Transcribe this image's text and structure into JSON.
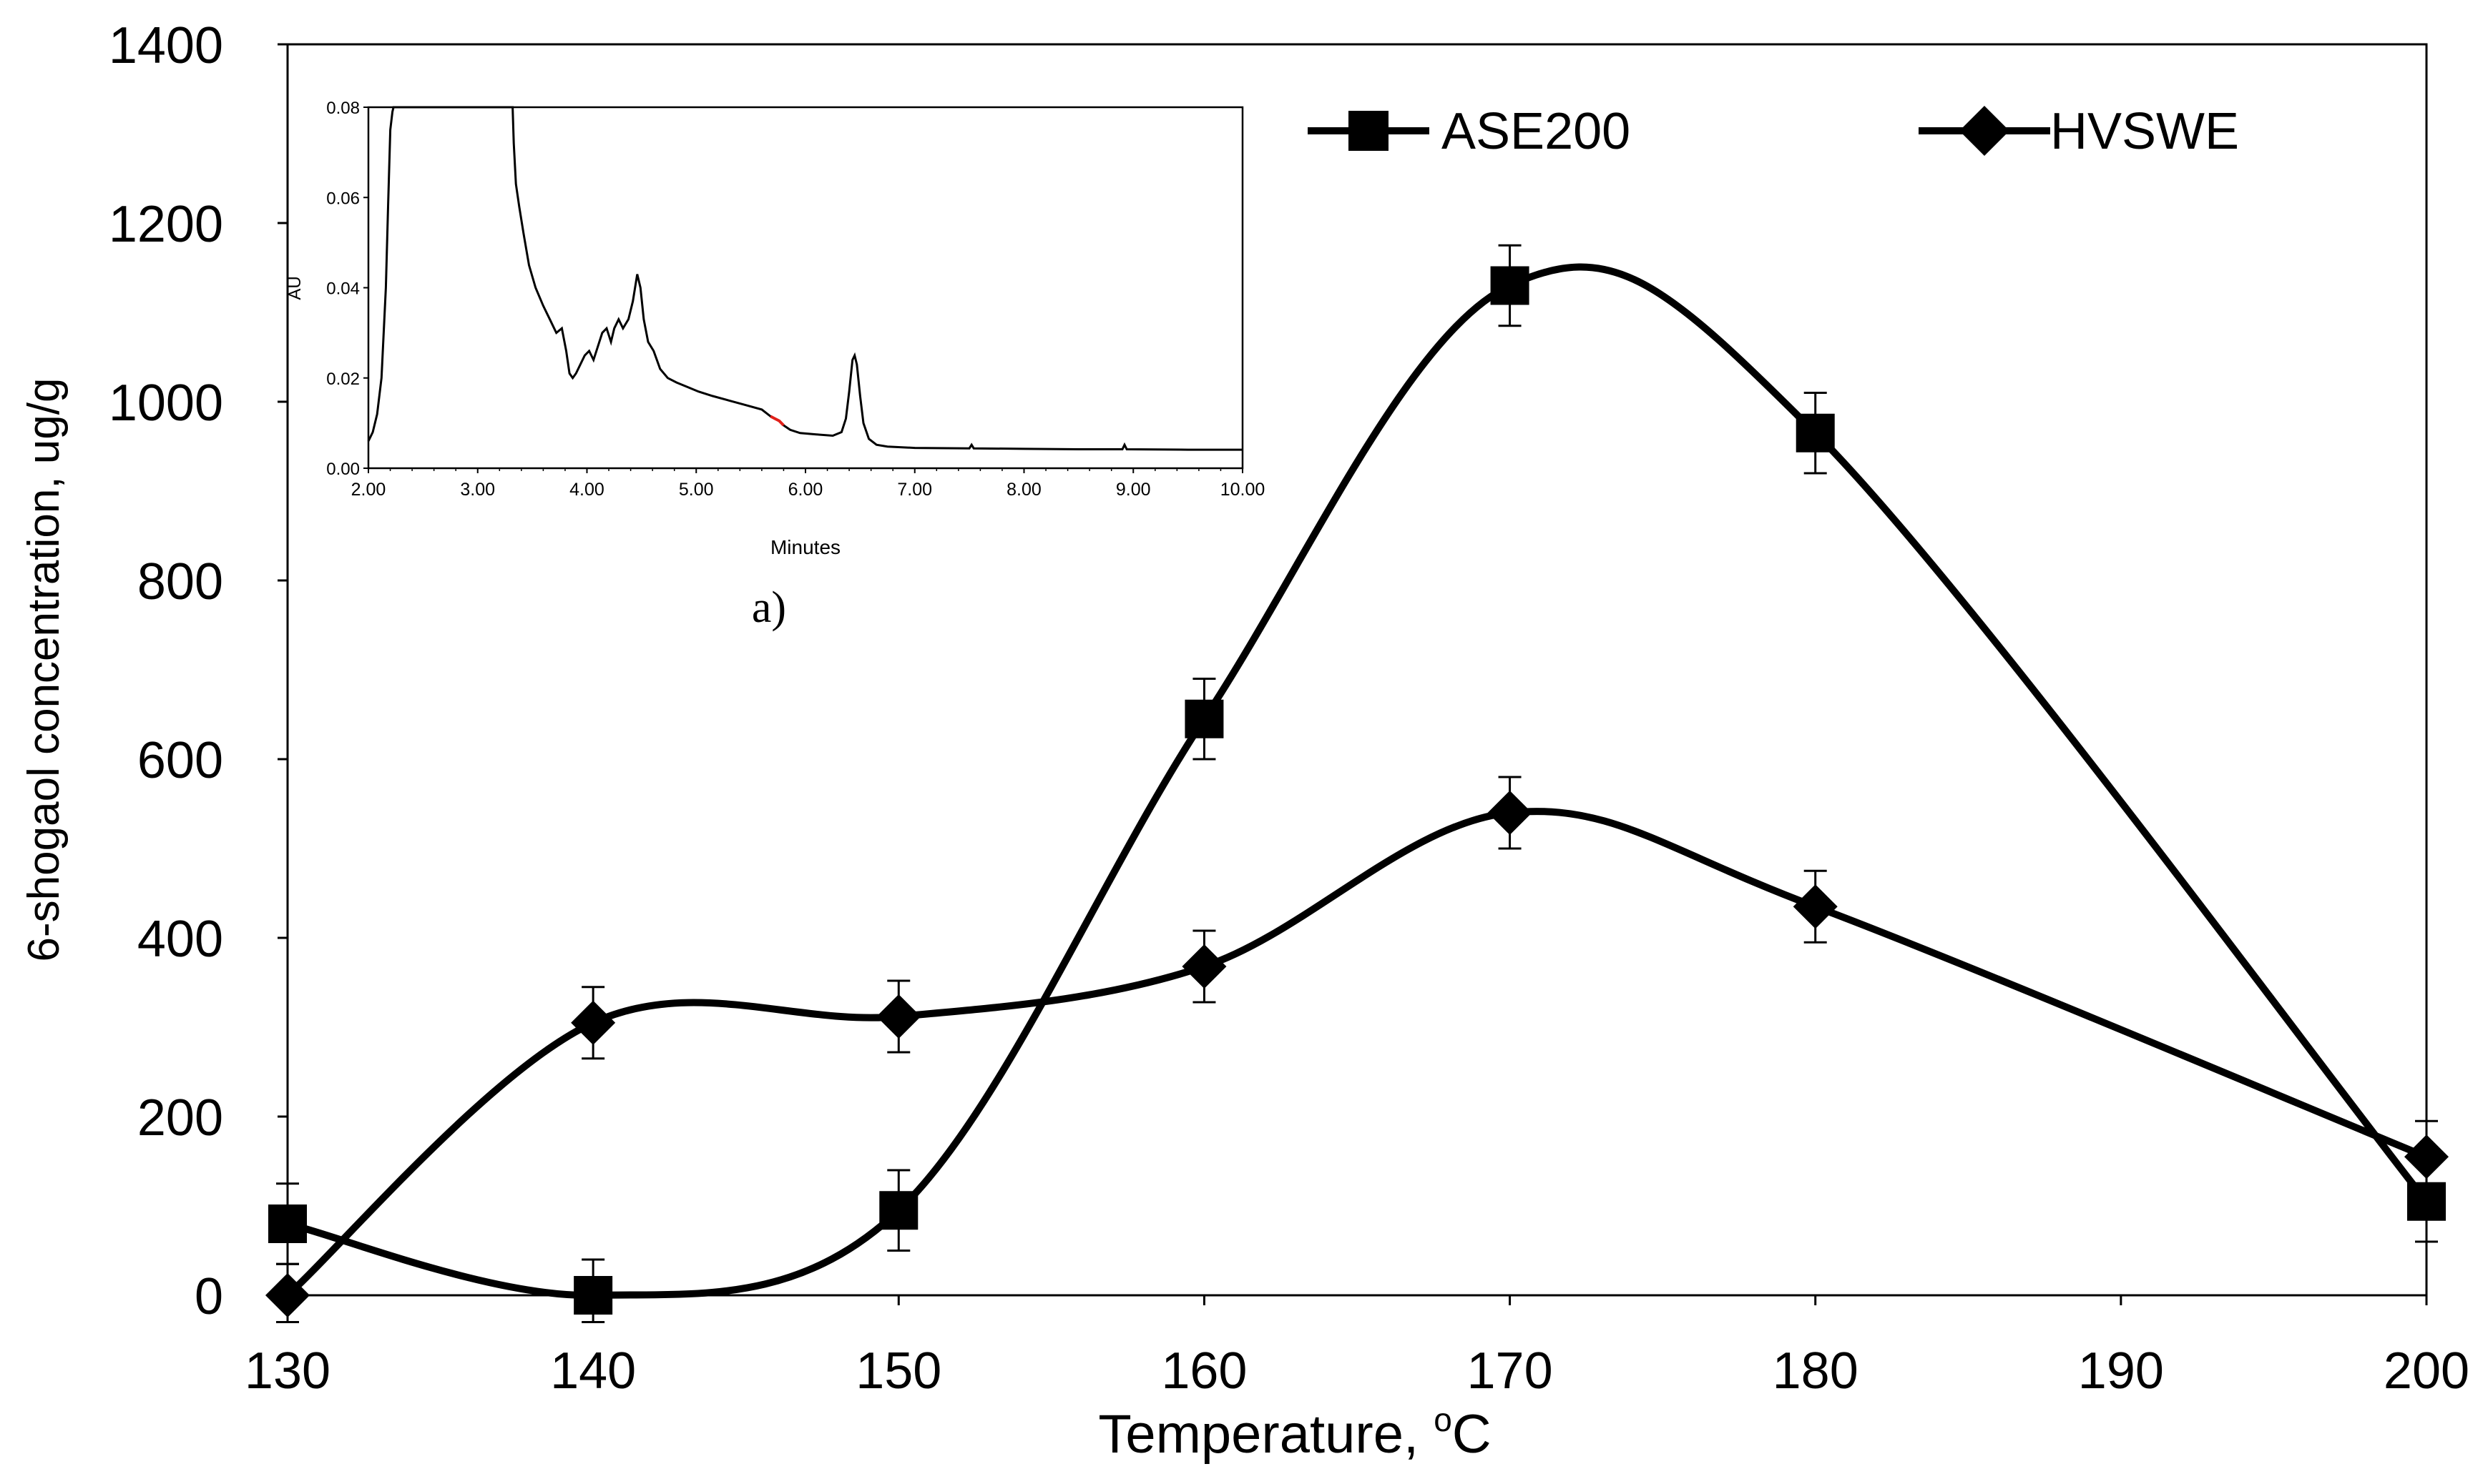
{
  "chart_data": [
    {
      "type": "line",
      "title": "",
      "xlabel": "Temperature, °C",
      "xlabel_main": "Temperature, ",
      "xlabel_sup": "o",
      "xlabel_unit": "C",
      "ylabel": "6-shogaol concentration, ug/g",
      "xlim": [
        130,
        200
      ],
      "ylim": [
        0,
        1400
      ],
      "xticks": [
        130,
        140,
        150,
        160,
        170,
        180,
        190,
        200
      ],
      "yticks": [
        0,
        200,
        400,
        600,
        800,
        1000,
        1200,
        1400
      ],
      "smooth": true,
      "legend_position": "top-right",
      "series": [
        {
          "name": "ASE200",
          "marker": "square",
          "color": "#000000",
          "x": [
            130,
            140,
            150,
            160,
            170,
            180,
            200
          ],
          "values": [
            80,
            0,
            95,
            645,
            1130,
            965,
            105
          ],
          "error": [
            45,
            40,
            45,
            45,
            45,
            45,
            45
          ]
        },
        {
          "name": "HVSWE",
          "marker": "diamond",
          "color": "#000000",
          "x": [
            130,
            140,
            150,
            160,
            170,
            180,
            200
          ],
          "values": [
            0,
            305,
            312,
            368,
            540,
            435,
            155
          ],
          "error": [
            35,
            40,
            40,
            40,
            40,
            40,
            40
          ]
        }
      ]
    },
    {
      "type": "line",
      "title": "",
      "panel_label": "a)",
      "xlabel": "Minutes",
      "ylabel": "AU",
      "xlim": [
        2.0,
        10.0
      ],
      "ylim": [
        0.0,
        0.08
      ],
      "xtick_labels": [
        "2.00",
        "3.00",
        "4.00",
        "5.00",
        "6.00",
        "7.00",
        "8.00",
        "9.00",
        "10.00"
      ],
      "ytick_labels": [
        "0.00",
        "0.02",
        "0.04",
        "0.06",
        "0.08"
      ],
      "highlight_color": "#e0201a",
      "series": [
        {
          "name": "chromatogram",
          "x": [
            2.0,
            2.04,
            2.08,
            2.12,
            2.16,
            2.18,
            2.2,
            2.22,
            2.23,
            3.32,
            3.33,
            3.35,
            3.38,
            3.42,
            3.47,
            3.53,
            3.6,
            3.66,
            3.72,
            3.77,
            3.81,
            3.84,
            3.87,
            3.9,
            3.94,
            3.98,
            4.02,
            4.06,
            4.1,
            4.14,
            4.18,
            4.22,
            4.25,
            4.29,
            4.33,
            4.38,
            4.42,
            4.46,
            4.49,
            4.52,
            4.56,
            4.61,
            4.67,
            4.74,
            4.82,
            4.92,
            5.02,
            5.15,
            5.3,
            5.45,
            5.6,
            5.68,
            5.72,
            5.76,
            5.8,
            5.86,
            5.95,
            6.1,
            6.25,
            6.33,
            6.37,
            6.4,
            6.43,
            6.45,
            6.47,
            6.5,
            6.53,
            6.58,
            6.65,
            6.75,
            7.0,
            7.5,
            7.52,
            7.54,
            8.0,
            8.5,
            8.9,
            8.92,
            8.94,
            9.5,
            10.0
          ],
          "values": [
            0.006,
            0.008,
            0.012,
            0.02,
            0.04,
            0.058,
            0.075,
            0.079,
            0.08,
            0.08,
            0.072,
            0.063,
            0.058,
            0.052,
            0.045,
            0.04,
            0.036,
            0.033,
            0.03,
            0.031,
            0.026,
            0.021,
            0.02,
            0.021,
            0.023,
            0.025,
            0.026,
            0.024,
            0.027,
            0.03,
            0.031,
            0.028,
            0.031,
            0.033,
            0.031,
            0.033,
            0.037,
            0.043,
            0.04,
            0.033,
            0.028,
            0.026,
            0.022,
            0.02,
            0.019,
            0.018,
            0.017,
            0.016,
            0.015,
            0.014,
            0.013,
            0.0115,
            0.011,
            0.0105,
            0.0095,
            0.0085,
            0.0078,
            0.0075,
            0.0072,
            0.008,
            0.011,
            0.017,
            0.024,
            0.025,
            0.023,
            0.016,
            0.01,
            0.0065,
            0.0052,
            0.0048,
            0.0045,
            0.0044,
            0.0052,
            0.0044,
            0.0043,
            0.0042,
            0.0042,
            0.0052,
            0.0042,
            0.0041,
            0.0041
          ],
          "highlight_range": [
            5.66,
            5.84
          ]
        }
      ]
    }
  ]
}
